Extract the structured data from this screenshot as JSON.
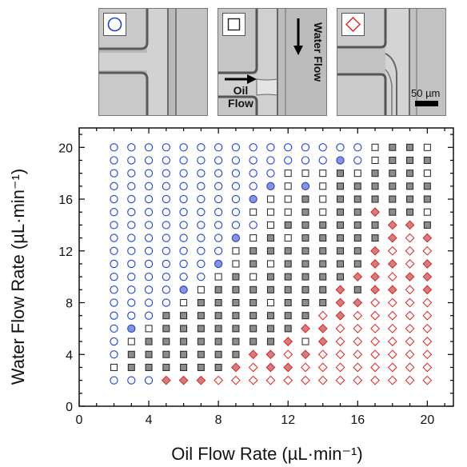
{
  "insets": [
    {
      "marker": "circle",
      "color": "#1f3fd6"
    },
    {
      "marker": "square",
      "color": "#222222",
      "labels": {
        "water": "Water Flow",
        "oil_line1": "Oil",
        "oil_line2": "Flow"
      }
    },
    {
      "marker": "diamond",
      "color": "#e02020",
      "scale_bar": "50 µm"
    }
  ],
  "chart_data": {
    "type": "scatter",
    "xlabel": "Oil Flow Rate (µL·min⁻¹)",
    "ylabel": "Water Flow Rate (µL·min⁻¹)",
    "xlim": [
      0,
      21.5
    ],
    "ylim": [
      0,
      21.5
    ],
    "xticks": [
      0,
      4,
      8,
      12,
      16,
      20
    ],
    "yticks": [
      0,
      4,
      8,
      12,
      16,
      20
    ],
    "x_values": [
      2,
      3,
      4,
      5,
      6,
      7,
      8,
      9,
      10,
      11,
      12,
      13,
      14,
      15,
      16,
      17,
      18,
      19,
      20
    ],
    "y_values": [
      2,
      3,
      4,
      5,
      6,
      7,
      8,
      9,
      10,
      11,
      12,
      13,
      14,
      15,
      16,
      17,
      18,
      19,
      20
    ],
    "legend": "symbols shown in micrograph insets above the plot",
    "colors": {
      "circle": "#1f3fd6",
      "square": "#222222",
      "square_fill": "#8c8c8c",
      "diamond": "#e02020",
      "diamond_fill": "#cc8080",
      "circle_fill": "#8a92d8"
    },
    "marker_key": "rows from y=20 (top) to y=2 (bottom), columns x=2..20; o=open circle, O=filled circle, s=open square, S=filled square, d=open diamond, D=filled diamond",
    "grid": [
      "ooooooooooooooosSSs",
      "oooooooooooooOosSSS",
      "oooooooooosssSsSSSs",
      "oooooooooOsOsSSSSSS",
      "ooooooooOssSsSSSSSS",
      "oooooooosssSsSSDSSs",
      "ooooooooosSSSSSSDDS",
      "oooooooOsSsSSSSSDdD",
      "ooooooosSSSSSSSDddd",
      "ooooooOsSsSSSSSDDdD",
      "oooooosSsSSSSSDDdDD",
      "ooooOsSSSSSSSDSDDdD",
      "oooosSSSSsSSSDDdddd",
      "oooSSSSSSSSSdDddddd",
      "oOsSSSSSSSSDDdddddd",
      "osSSSSSSSSDsDdddddd",
      "oSSSSSSSDDdDddddddd",
      "sSSSSSSDdDDdddddddd",
      "oooDDDddddddddddddd"
    ]
  }
}
